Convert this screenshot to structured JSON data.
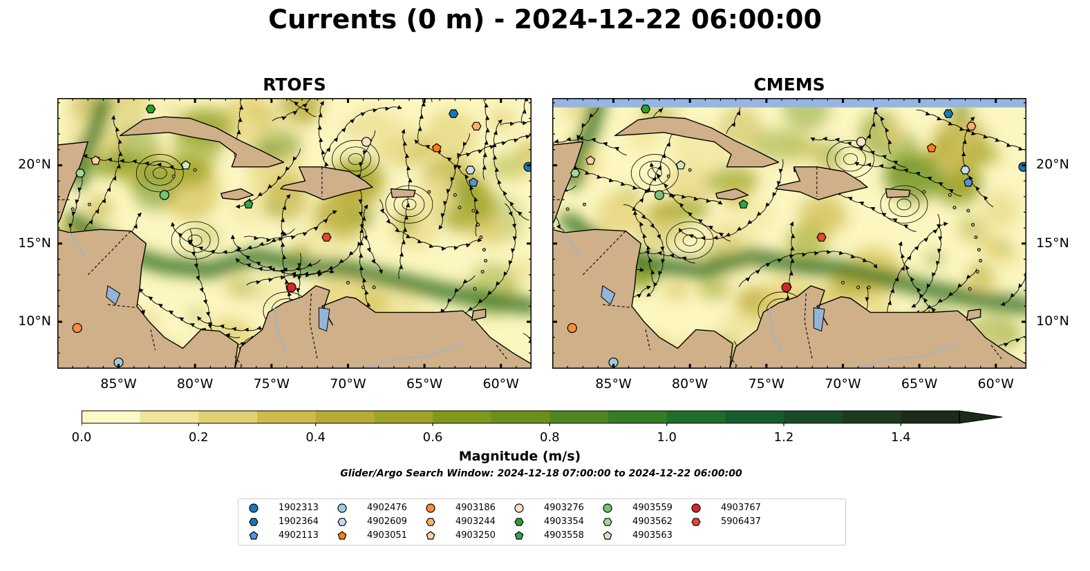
{
  "title": "Currents (0 m) - 2024-12-22 06:00:00",
  "panels": [
    {
      "title": "RTOFS"
    },
    {
      "title": "CMEMS"
    }
  ],
  "map": {
    "lon_ticks": [
      "85°W",
      "80°W",
      "75°W",
      "70°W",
      "65°W",
      "60°W"
    ],
    "lat_ticks": [
      "20°N",
      "15°N",
      "10°N"
    ],
    "extent": {
      "lon": [
        -89,
        -58
      ],
      "lat": [
        7,
        24.3
      ]
    },
    "colors": {
      "land": "#cfb089",
      "ocean_low": "#fcf6c0",
      "ocean_high": "#1e2a12",
      "lake": "#94b4da",
      "cmems_nodata": "#96b5e3"
    }
  },
  "colorbar": {
    "label": "Magnitude (m/s)",
    "tick_labels": [
      "0.0",
      "0.2",
      "0.4",
      "0.6",
      "0.8",
      "1.0",
      "1.2",
      "1.4"
    ],
    "range": [
      0,
      1.5
    ],
    "extend": "max",
    "colors": [
      "#fdf8c8",
      "#f0e39a",
      "#e2d072",
      "#cfbb4c",
      "#b8aa34",
      "#9da427",
      "#80991d",
      "#6a8f1c",
      "#4f851f",
      "#367c24",
      "#1f6e2c",
      "#165c2c",
      "#1a4b27",
      "#1d3a21",
      "#1c2b19"
    ]
  },
  "search_window": "Glider/Argo Search Window: 2024-12-18 07:00:00 to 2024-12-22 06:00:00",
  "legend": [
    {
      "id": "1902313",
      "marker": "circle",
      "color": "#1f77b4"
    },
    {
      "id": "1902364",
      "marker": "hexagon",
      "color": "#1f77b4"
    },
    {
      "id": "4902113",
      "marker": "pentagon",
      "color": "#4e95d8"
    },
    {
      "id": "4902476",
      "marker": "circle",
      "color": "#9ecae1"
    },
    {
      "id": "4902609",
      "marker": "hexagon",
      "color": "#c6dbef"
    },
    {
      "id": "4903051",
      "marker": "pentagon",
      "color": "#ff7f0e"
    },
    {
      "id": "4903186",
      "marker": "circle",
      "color": "#fd8d3c"
    },
    {
      "id": "4903244",
      "marker": "hexagon",
      "color": "#fdae6b"
    },
    {
      "id": "4903250",
      "marker": "pentagon",
      "color": "#fdd0a2"
    },
    {
      "id": "4903276",
      "marker": "circle",
      "color": "#fde0c5"
    },
    {
      "id": "4903354",
      "marker": "hexagon",
      "color": "#2ca02c"
    },
    {
      "id": "4903558",
      "marker": "pentagon",
      "color": "#31a354"
    },
    {
      "id": "4903559",
      "marker": "circle",
      "color": "#74c476"
    },
    {
      "id": "4903562",
      "marker": "hexagon",
      "color": "#a1d99b"
    },
    {
      "id": "4903563",
      "marker": "pentagon",
      "color": "#c7e9c0"
    },
    {
      "id": "4903767",
      "marker": "circle",
      "color": "#d62728"
    },
    {
      "id": "5906437",
      "marker": "hexagon",
      "color": "#e34a33"
    }
  ],
  "floats": [
    {
      "id": "1902313",
      "lon": -58.2,
      "lat": 19.9
    },
    {
      "id": "1902364",
      "lon": -63.1,
      "lat": 23.3
    },
    {
      "id": "4902113",
      "lon": -61.8,
      "lat": 18.9
    },
    {
      "id": "4902476",
      "lon": -85.0,
      "lat": 7.4
    },
    {
      "id": "4902609",
      "lon": -62.0,
      "lat": 19.7
    },
    {
      "id": "4903051",
      "lon": -64.2,
      "lat": 21.1
    },
    {
      "id": "4903186",
      "lon": -87.7,
      "lat": 9.6
    },
    {
      "id": "4903244",
      "lon": -61.6,
      "lat": 22.5
    },
    {
      "id": "4903250",
      "lon": -86.5,
      "lat": 20.3
    },
    {
      "id": "4903276",
      "lon": -68.8,
      "lat": 21.5
    },
    {
      "id": "4903354",
      "lon": -82.9,
      "lat": 23.6
    },
    {
      "id": "4903558",
      "lon": -76.5,
      "lat": 17.5
    },
    {
      "id": "4903559",
      "lon": -82.0,
      "lat": 18.1
    },
    {
      "id": "4903562",
      "lon": -87.5,
      "lat": 19.5
    },
    {
      "id": "4903563",
      "lon": -80.6,
      "lat": 20.0
    },
    {
      "id": "4903767",
      "lon": -73.7,
      "lat": 12.2
    },
    {
      "id": "5906437",
      "lon": -71.4,
      "lat": 15.4
    }
  ]
}
